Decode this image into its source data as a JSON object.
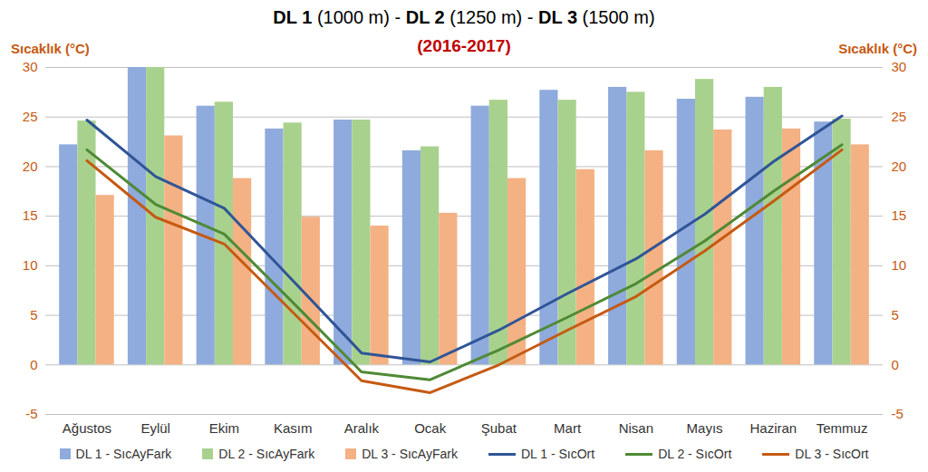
{
  "chart_data": {
    "type": "bar",
    "title": "DL 1 (1000 m) - DL 2 (1250 m) - DL 3 (1500 m)",
    "subtitle": "(2016-2017)",
    "ylabel": "Sıcaklık (°C)",
    "y2label": "Sıcaklık (°C)",
    "categories": [
      "Ağustos",
      "Eylül",
      "Ekim",
      "Kasım",
      "Aralık",
      "Ocak",
      "Şubat",
      "Mart",
      "Nisan",
      "Mayıs",
      "Haziran",
      "Temmuz"
    ],
    "ylim": [
      -5,
      30
    ],
    "yticks": [
      -5,
      0,
      5,
      10,
      15,
      20,
      25,
      30
    ],
    "grid": true,
    "legend": "bottom",
    "series": [
      {
        "name": "DL 1 - SıcAyFark",
        "type": "bar",
        "color": "#8faadc",
        "values": [
          22.2,
          30,
          26.1,
          23.8,
          24.7,
          21.6,
          26.1,
          27.7,
          28.0,
          26.8,
          27.0,
          24.5
        ]
      },
      {
        "name": "DL 2 - SıcAyFark",
        "type": "bar",
        "color": "#a9d18e",
        "values": [
          24.6,
          30,
          26.5,
          24.4,
          24.7,
          22.0,
          26.7,
          26.7,
          27.5,
          28.8,
          28.0,
          24.8
        ]
      },
      {
        "name": "DL 3 - SıcAyFark",
        "type": "bar",
        "color": "#f4b183",
        "values": [
          17.1,
          23.1,
          18.8,
          14.9,
          14.0,
          15.3,
          18.8,
          19.7,
          21.6,
          23.7,
          23.8,
          22.2
        ]
      },
      {
        "name": "DL 1 - SıcOrt",
        "type": "line",
        "color": "#2f5597",
        "values": [
          24.7,
          19.0,
          15.8,
          8.5,
          1.2,
          0.3,
          3.5,
          7.2,
          10.7,
          15.2,
          20.5,
          25.1
        ]
      },
      {
        "name": "DL 2 - SıcOrt",
        "type": "line",
        "color": "#4e8a34",
        "values": [
          21.7,
          16.2,
          13.2,
          6.3,
          -0.7,
          -1.5,
          1.5,
          4.8,
          8.2,
          12.5,
          17.5,
          22.2
        ]
      },
      {
        "name": "DL 3 - SıcOrt",
        "type": "line",
        "color": "#c55a11",
        "values": [
          20.6,
          14.9,
          12.2,
          5.3,
          -1.6,
          -2.8,
          0.0,
          3.5,
          6.9,
          11.5,
          16.5,
          21.7
        ]
      }
    ]
  }
}
